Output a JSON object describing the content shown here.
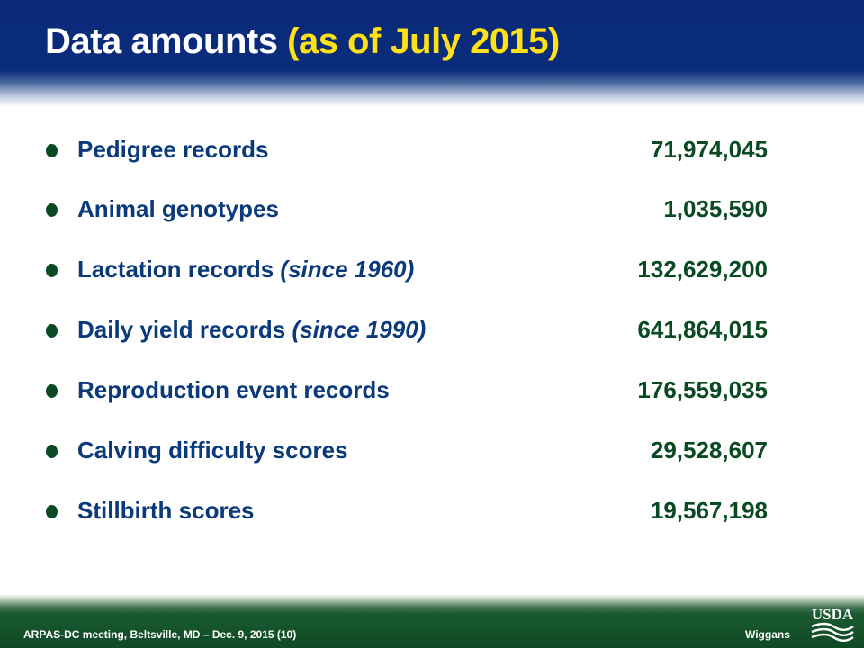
{
  "slide": {
    "title_main": "Data amounts",
    "title_accent": "(as of July 2015)"
  },
  "items": [
    {
      "label": "Pedigree records",
      "note": "",
      "value": "71,974,045"
    },
    {
      "label": "Animal genotypes",
      "note": "",
      "value": "1,035,590"
    },
    {
      "label": "Lactation records",
      "note": "(since 1960)",
      "value": "132,629,200"
    },
    {
      "label": "Daily yield records",
      "note": "(since 1990)",
      "value": "641,864,015"
    },
    {
      "label": "Reproduction event records",
      "note": "",
      "value": "176,559,035"
    },
    {
      "label": "Calving difficulty scores",
      "note": "",
      "value": "29,528,607"
    },
    {
      "label": "Stillbirth scores",
      "note": "",
      "value": "19,567,198"
    }
  ],
  "footer": {
    "left": "ARPAS-DC meeting, Beltsville, MD – Dec. 9, 2015  (10)",
    "right": "Wiggans",
    "logo_text": "USDA"
  },
  "colors": {
    "header_blue": "#0b2b7c",
    "title_accent": "#ffe11a",
    "label_blue": "#0a3a7c",
    "value_green": "#0a4a23",
    "footer_green": "#0e4a24"
  }
}
